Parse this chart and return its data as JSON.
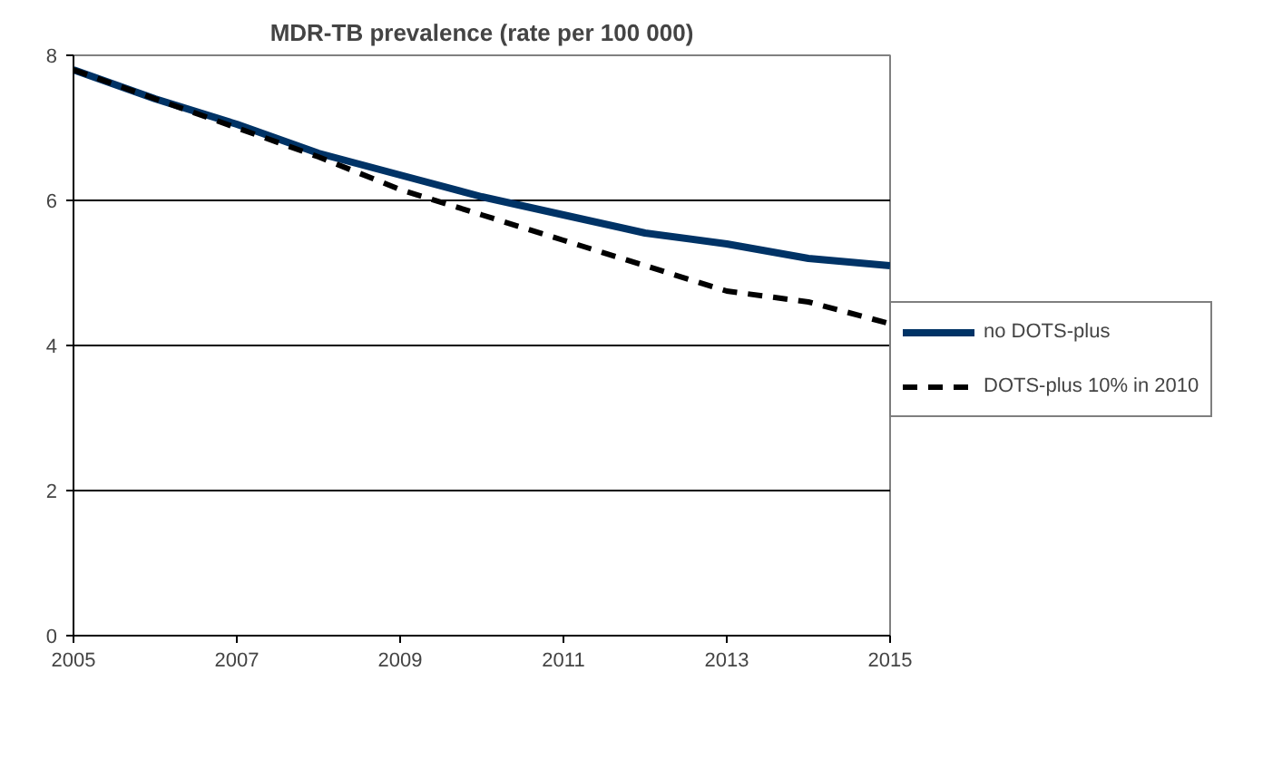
{
  "chart_data": {
    "type": "line",
    "title": "MDR-TB prevalence (rate per 100 000)",
    "x": [
      2005,
      2006,
      2007,
      2008,
      2009,
      2010,
      2011,
      2012,
      2013,
      2014,
      2015
    ],
    "series": [
      {
        "name": "no DOTS-plus",
        "color": "#003366",
        "line_style": "solid",
        "values": [
          7.8,
          7.4,
          7.05,
          6.65,
          6.35,
          6.05,
          5.8,
          5.55,
          5.4,
          5.2,
          5.1
        ]
      },
      {
        "name": "DOTS-plus 10% in 2010",
        "color": "#000000",
        "line_style": "dashed",
        "values": [
          7.8,
          7.4,
          7.0,
          6.6,
          6.15,
          5.8,
          5.45,
          5.1,
          4.75,
          4.6,
          4.3
        ]
      }
    ],
    "xlim": [
      2005,
      2015
    ],
    "xticks": [
      2005,
      2007,
      2009,
      2011,
      2013,
      2015
    ],
    "ylim": [
      0,
      8
    ],
    "yticks": [
      0,
      2,
      4,
      6,
      8
    ],
    "grid": "y",
    "legend": "right",
    "marker": "none"
  }
}
